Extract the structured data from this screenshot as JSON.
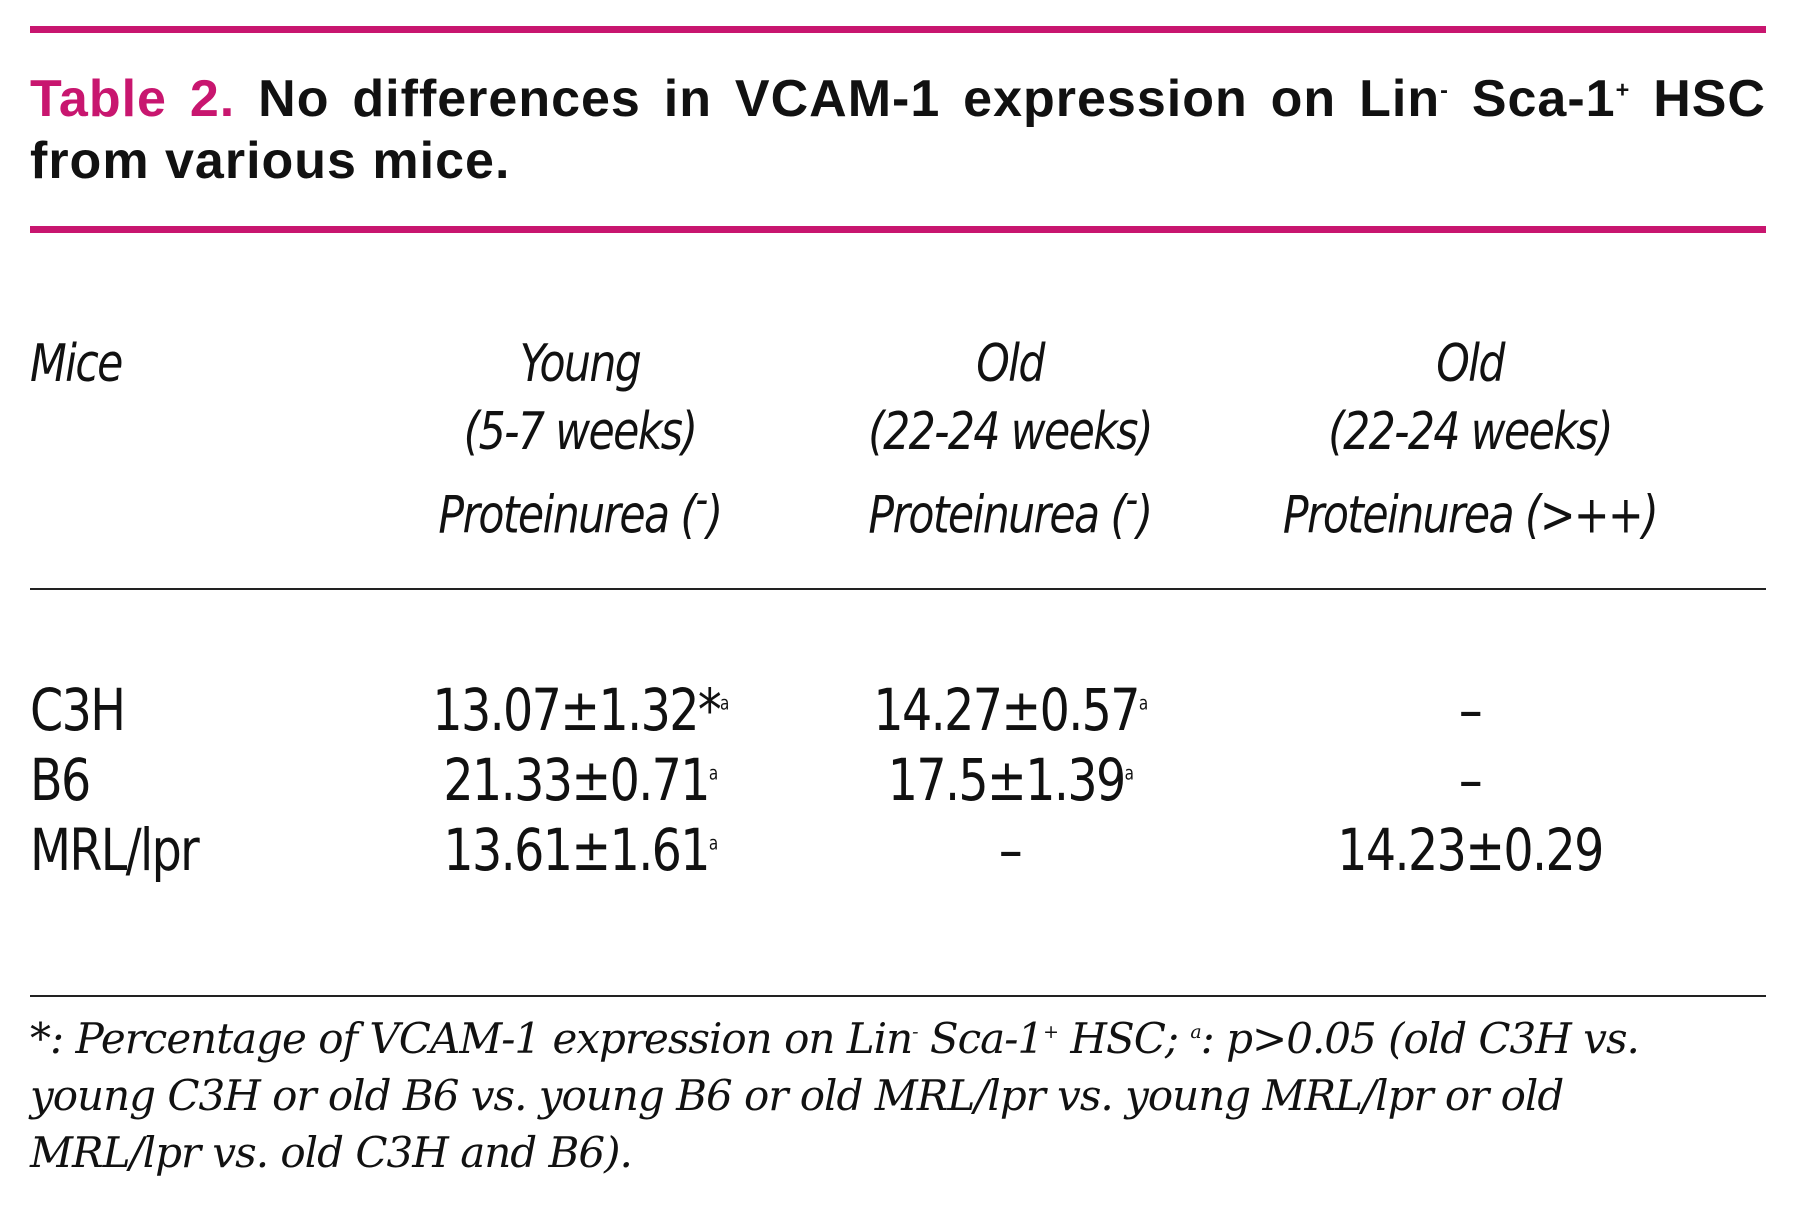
{
  "caption": {
    "label": "Table 2.",
    "text_before_lin_sup": " No differences in VCAM-1 expression on Lin",
    "lin_sup": "-",
    "text_before_sca_sup": " Sca-1",
    "sca_sup": "+",
    "text_after": " HSC from various mice."
  },
  "colors": {
    "accent": "#c8166f",
    "text": "#111111"
  },
  "table": {
    "header": {
      "mice": "Mice",
      "columns": [
        {
          "line1": "Young",
          "line2": "(5-7 weeks)",
          "line3": "Proteinurea (",
          "sup": "-",
          "line3_end": ")"
        },
        {
          "line1": "Old",
          "line2": "(22-24 weeks)",
          "line3": "Proteinurea (",
          "sup": "-",
          "line3_end": ")"
        },
        {
          "line1": "Old",
          "line2": "(22-24 weeks)",
          "line3": "Proteinurea (>++)",
          "sup": "",
          "line3_end": ""
        }
      ]
    },
    "rows": [
      {
        "label": "C3H",
        "cells": [
          {
            "value": "13.07±1.32*",
            "sup": "a"
          },
          {
            "value": "14.27±0.57",
            "sup": "a"
          },
          {
            "value": "–",
            "sup": ""
          }
        ]
      },
      {
        "label": "B6",
        "cells": [
          {
            "value": "21.33±0.71",
            "sup": "a"
          },
          {
            "value": "17.5±1.39",
            "sup": "a"
          },
          {
            "value": "–",
            "sup": ""
          }
        ]
      },
      {
        "label": "MRL/lpr",
        "cells": [
          {
            "value": "13.61±1.61",
            "sup": "a"
          },
          {
            "value": "–",
            "sup": ""
          },
          {
            "value": "14.23±0.29",
            "sup": ""
          }
        ]
      }
    ]
  },
  "footnote": {
    "part1": "*: Percentage of VCAM-1 expression on Lin",
    "sup1": "-",
    "part2": " Sca-1",
    "sup2": "+",
    "part3": " HSC; ",
    "sup3": "a",
    "part4": ": p>0.05 (old C3H vs. young C3H or old B6 vs. young B6 or old MRL/lpr vs. young MRL/lpr or old MRL/lpr vs. old C3H and B6)."
  }
}
